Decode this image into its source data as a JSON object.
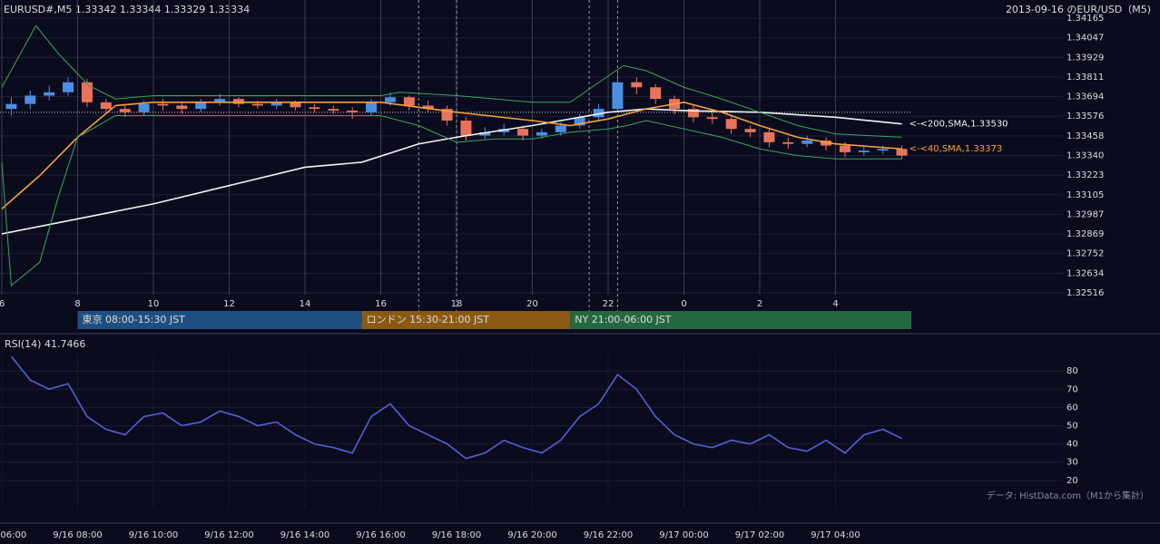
{
  "chart_data": [
    {
      "type": "candlestick",
      "title": "EURUSD#,M5 1.33342 1.33344 1.33329 1.33334",
      "subtitle": "2013-09-16 のEUR/USD（M5)",
      "x": [
        6.25,
        6.75,
        7.25,
        7.75,
        8.25,
        8.75,
        9.25,
        9.75,
        10.25,
        10.75,
        11.25,
        11.75,
        12.25,
        12.75,
        13.25,
        13.75,
        14.25,
        14.75,
        15.25,
        15.75,
        16.25,
        16.75,
        17.25,
        17.75,
        18.25,
        18.75,
        19.25,
        19.75,
        20.25,
        20.75,
        21.25,
        21.75,
        22.25,
        22.75,
        23.25,
        23.75,
        24.25,
        24.75,
        25.25,
        25.75,
        26.25,
        26.75,
        27.25,
        27.75,
        28.25,
        28.75,
        29.25,
        29.75
      ],
      "open": [
        1.3362,
        1.3365,
        1.337,
        1.3372,
        1.3378,
        1.3366,
        1.3362,
        1.336,
        1.3365,
        1.3364,
        1.3362,
        1.3366,
        1.3368,
        1.3365,
        1.3364,
        1.3366,
        1.3363,
        1.3362,
        1.3361,
        1.336,
        1.3366,
        1.3369,
        1.3364,
        1.3362,
        1.3355,
        1.3346,
        1.3348,
        1.335,
        1.3346,
        1.3348,
        1.3352,
        1.3357,
        1.3362,
        1.3378,
        1.3375,
        1.3368,
        1.3362,
        1.3357,
        1.3356,
        1.335,
        1.3348,
        1.3342,
        1.3341,
        1.3343,
        1.334,
        1.3336,
        1.3337,
        1.3338
      ],
      "high": [
        1.3369,
        1.3373,
        1.3376,
        1.3381,
        1.338,
        1.3368,
        1.3364,
        1.3367,
        1.3368,
        1.3366,
        1.3368,
        1.3371,
        1.3369,
        1.3367,
        1.3368,
        1.3367,
        1.3365,
        1.3364,
        1.3363,
        1.3368,
        1.3372,
        1.337,
        1.3367,
        1.3364,
        1.3357,
        1.3351,
        1.3353,
        1.3352,
        1.335,
        1.3354,
        1.3359,
        1.3365,
        1.3383,
        1.3381,
        1.3377,
        1.337,
        1.3364,
        1.336,
        1.3358,
        1.3352,
        1.335,
        1.3345,
        1.3346,
        1.3345,
        1.3342,
        1.334,
        1.334,
        1.334
      ],
      "low": [
        1.3358,
        1.3362,
        1.3367,
        1.337,
        1.3363,
        1.3359,
        1.3357,
        1.3358,
        1.3361,
        1.3359,
        1.336,
        1.3364,
        1.3363,
        1.3362,
        1.3362,
        1.3361,
        1.336,
        1.3359,
        1.3356,
        1.3358,
        1.3364,
        1.3361,
        1.336,
        1.3352,
        1.3343,
        1.3344,
        1.3346,
        1.3343,
        1.3344,
        1.3346,
        1.335,
        1.3355,
        1.336,
        1.3371,
        1.3365,
        1.3359,
        1.3354,
        1.3353,
        1.3347,
        1.3345,
        1.3339,
        1.3338,
        1.3339,
        1.3337,
        1.3333,
        1.3334,
        1.3335,
        1.3332
      ],
      "close": [
        1.3365,
        1.337,
        1.3372,
        1.3378,
        1.3366,
        1.3362,
        1.336,
        1.3365,
        1.3364,
        1.3362,
        1.3366,
        1.3368,
        1.3365,
        1.3364,
        1.3366,
        1.3363,
        1.3362,
        1.3361,
        1.336,
        1.3366,
        1.3369,
        1.3364,
        1.3362,
        1.3355,
        1.3346,
        1.3348,
        1.335,
        1.3346,
        1.3348,
        1.3352,
        1.3357,
        1.3362,
        1.3378,
        1.3375,
        1.3368,
        1.3362,
        1.3357,
        1.3356,
        1.335,
        1.3348,
        1.3342,
        1.3341,
        1.3343,
        1.334,
        1.3336,
        1.3337,
        1.3338,
        1.3334
      ],
      "up_color": "#4a90e2",
      "down_color": "#e8735a",
      "series": [
        {
          "name": "<-<200,SMA,1.33530",
          "color": "#f2f2f2",
          "x": [
            6,
            8,
            10,
            12,
            14,
            15.5,
            17,
            18,
            20,
            22,
            23,
            24,
            26,
            28,
            29.75
          ],
          "values": [
            1.3287,
            1.3296,
            1.3305,
            1.3316,
            1.3327,
            1.333,
            1.3341,
            1.3345,
            1.3352,
            1.336,
            1.3362,
            1.3361,
            1.336,
            1.3357,
            1.3353
          ]
        },
        {
          "name": "<-<40,SMA,1.33373",
          "color": "#f5a03c",
          "x": [
            6,
            7,
            8,
            9,
            10,
            12,
            14,
            16,
            18,
            20,
            21,
            22,
            23,
            24,
            25,
            26,
            27,
            28,
            29.75
          ],
          "values": [
            1.3302,
            1.3322,
            1.3345,
            1.3364,
            1.3366,
            1.3366,
            1.3366,
            1.3366,
            1.336,
            1.3355,
            1.3352,
            1.3356,
            1.3362,
            1.3366,
            1.336,
            1.3352,
            1.3345,
            1.3341,
            1.3338
          ]
        },
        {
          "color": "#3aa55d",
          "x": [
            6,
            6.9,
            7.5,
            8.3,
            9,
            10,
            12,
            14,
            16,
            16.5,
            18,
            20,
            21,
            22.4,
            23,
            24,
            25,
            26,
            27,
            28,
            29.75
          ],
          "values": [
            1.3375,
            1.3412,
            1.3395,
            1.3376,
            1.3368,
            1.337,
            1.337,
            1.337,
            1.337,
            1.3372,
            1.337,
            1.3366,
            1.3366,
            1.3388,
            1.3385,
            1.3375,
            1.3368,
            1.336,
            1.3352,
            1.3347,
            1.3345
          ]
        },
        {
          "color": "#3aa55d",
          "x": [
            6,
            6.25,
            7,
            7.5,
            8,
            9,
            10,
            12,
            14,
            16,
            17,
            18,
            19,
            20,
            21,
            22,
            22.5,
            23,
            24,
            25,
            26,
            27,
            28,
            29.75
          ],
          "values": [
            1.333,
            1.3256,
            1.327,
            1.331,
            1.3345,
            1.3358,
            1.3358,
            1.3358,
            1.3358,
            1.3358,
            1.3352,
            1.3342,
            1.3344,
            1.3344,
            1.3348,
            1.335,
            1.3352,
            1.3355,
            1.335,
            1.3345,
            1.3338,
            1.3334,
            1.3332,
            1.3332
          ]
        }
      ],
      "reference_line": 1.336,
      "marker_lines": [
        17,
        18,
        21.5,
        22.25
      ],
      "sessions": [
        {
          "label": "東京 08:00-15:30 JST",
          "start": 8,
          "end": 15.5,
          "color": "#1f4e80"
        },
        {
          "label": "ロンドン 15:30-21:00 JST",
          "start": 15.5,
          "end": 21,
          "color": "#8a5a14"
        },
        {
          "label": "NY 21:00-06:00 JST",
          "start": 21,
          "end": 30,
          "color": "#25683f"
        }
      ],
      "xlim": [
        6,
        34
      ],
      "xticks": [
        6,
        8,
        10,
        12,
        14,
        16,
        18,
        20,
        22,
        {
          "value": 24,
          "label": "0"
        },
        {
          "value": 26,
          "label": "2"
        },
        {
          "value": 28,
          "label": "4"
        }
      ],
      "ylim": [
        1.32516,
        1.34165
      ],
      "yticks": [
        1.34165,
        1.34047,
        1.33929,
        1.33811,
        1.33694,
        1.33576,
        1.33458,
        {
          "value": 1.3334,
          "label": "1.33340"
        },
        1.33223,
        1.33105,
        1.32987,
        1.32869,
        1.32752,
        1.32634,
        1.32516
      ],
      "grid": true
    },
    {
      "type": "line",
      "title": "RSI(14) 41.7466",
      "note": "データ: HistData.com（M1から集計）",
      "series": [
        {
          "color": "#5560d8",
          "x": [
            6.25,
            6.75,
            7.25,
            7.75,
            8.25,
            8.75,
            9.25,
            9.75,
            10.25,
            10.75,
            11.25,
            11.75,
            12.25,
            12.75,
            13.25,
            13.75,
            14.25,
            14.75,
            15.25,
            15.75,
            16.25,
            16.75,
            17.25,
            17.75,
            18.25,
            18.75,
            19.25,
            19.75,
            20.25,
            20.75,
            21.25,
            21.75,
            22.25,
            22.75,
            23.25,
            23.75,
            24.25,
            24.75,
            25.25,
            25.75,
            26.25,
            26.75,
            27.25,
            27.75,
            28.25,
            28.75,
            29.25,
            29.75
          ],
          "values": [
            88,
            75,
            70,
            73,
            55,
            48,
            45,
            55,
            57,
            50,
            52,
            58,
            55,
            50,
            52,
            45,
            40,
            38,
            35,
            55,
            62,
            50,
            45,
            40,
            32,
            35,
            42,
            38,
            35,
            42,
            55,
            62,
            78,
            70,
            55,
            45,
            40,
            38,
            42,
            40,
            45,
            38,
            36,
            42,
            35,
            45,
            48,
            43
          ]
        }
      ],
      "xlim": [
        6,
        34
      ],
      "xticks": [
        {
          "value": 6,
          "label": "9/16 06:00"
        },
        {
          "value": 8,
          "label": "9/16 08:00"
        },
        {
          "value": 10,
          "label": "9/16 10:00"
        },
        {
          "value": 12,
          "label": "9/16 12:00"
        },
        {
          "value": 14,
          "label": "9/16 14:00"
        },
        {
          "value": 16,
          "label": "9/16 16:00"
        },
        {
          "value": 18,
          "label": "9/16 18:00"
        },
        {
          "value": 20,
          "label": "9/16 20:00"
        },
        {
          "value": 22,
          "label": "9/16 22:00"
        },
        {
          "value": 24,
          "label": "9/17 00:00"
        },
        {
          "value": 26,
          "label": "9/17 02:00"
        },
        {
          "value": 28,
          "label": "9/17 04:00"
        }
      ],
      "ylim": [
        7,
        92
      ],
      "yticks": [
        20,
        30,
        40,
        50,
        60,
        70,
        80
      ],
      "grid": true
    }
  ]
}
